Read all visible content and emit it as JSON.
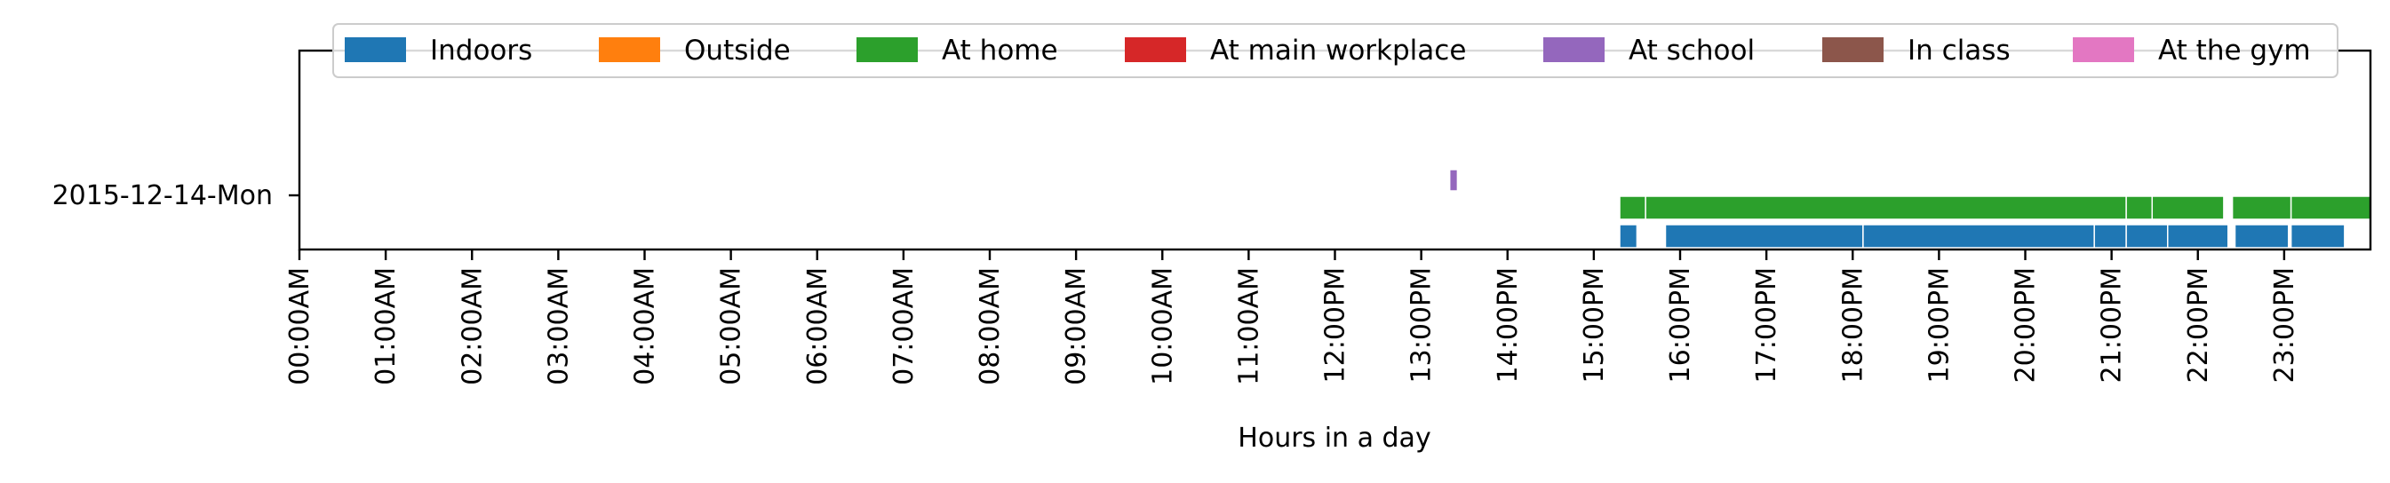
{
  "chart_data": {
    "type": "timeline",
    "title": "",
    "xlabel": "Hours in a day",
    "ylabel": "",
    "xlim": [
      0,
      24
    ],
    "x_tick_labels": [
      "00:00AM",
      "01:00AM",
      "02:00AM",
      "03:00AM",
      "04:00AM",
      "05:00AM",
      "06:00AM",
      "07:00AM",
      "08:00AM",
      "09:00AM",
      "10:00AM",
      "11:00AM",
      "12:00PM",
      "13:00PM",
      "14:00PM",
      "15:00PM",
      "16:00PM",
      "17:00PM",
      "18:00PM",
      "19:00PM",
      "20:00PM",
      "21:00PM",
      "22:00PM",
      "23:00PM"
    ],
    "y_tick_labels": [
      "2015-12-14-Mon"
    ],
    "legend_position": "top",
    "categories": [
      {
        "name": "Indoors",
        "color": "#1f77b4",
        "lane": 0
      },
      {
        "name": "Outside",
        "color": "#ff7f0e",
        "lane": 1
      },
      {
        "name": "At home",
        "color": "#2ca02c",
        "lane": 1
      },
      {
        "name": "At main workplace",
        "color": "#d62728",
        "lane": 2
      },
      {
        "name": "At school",
        "color": "#9467bd",
        "lane": 3
      },
      {
        "name": "In class",
        "color": "#8c564b",
        "lane": 4
      },
      {
        "name": "At the gym",
        "color": "#e377c2",
        "lane": 5
      }
    ],
    "series": [
      {
        "name": "Indoors",
        "intervals": [
          [
            15.3,
            15.5
          ],
          [
            15.83,
            18.12
          ],
          [
            18.12,
            20.8
          ],
          [
            20.8,
            21.17
          ],
          [
            21.17,
            21.65
          ],
          [
            21.65,
            22.35
          ],
          [
            22.43,
            23.05
          ],
          [
            23.08,
            23.7
          ]
        ]
      },
      {
        "name": "Outside",
        "intervals": []
      },
      {
        "name": "At home",
        "intervals": [
          [
            15.3,
            15.6
          ],
          [
            15.6,
            21.17
          ],
          [
            21.17,
            21.47
          ],
          [
            21.47,
            22.3
          ],
          [
            22.4,
            23.08
          ],
          [
            23.08,
            24.0
          ]
        ]
      },
      {
        "name": "At main workplace",
        "intervals": []
      },
      {
        "name": "At school",
        "intervals": [
          [
            13.33,
            13.42
          ]
        ]
      },
      {
        "name": "In class",
        "intervals": []
      },
      {
        "name": "At the gym",
        "intervals": []
      }
    ]
  }
}
